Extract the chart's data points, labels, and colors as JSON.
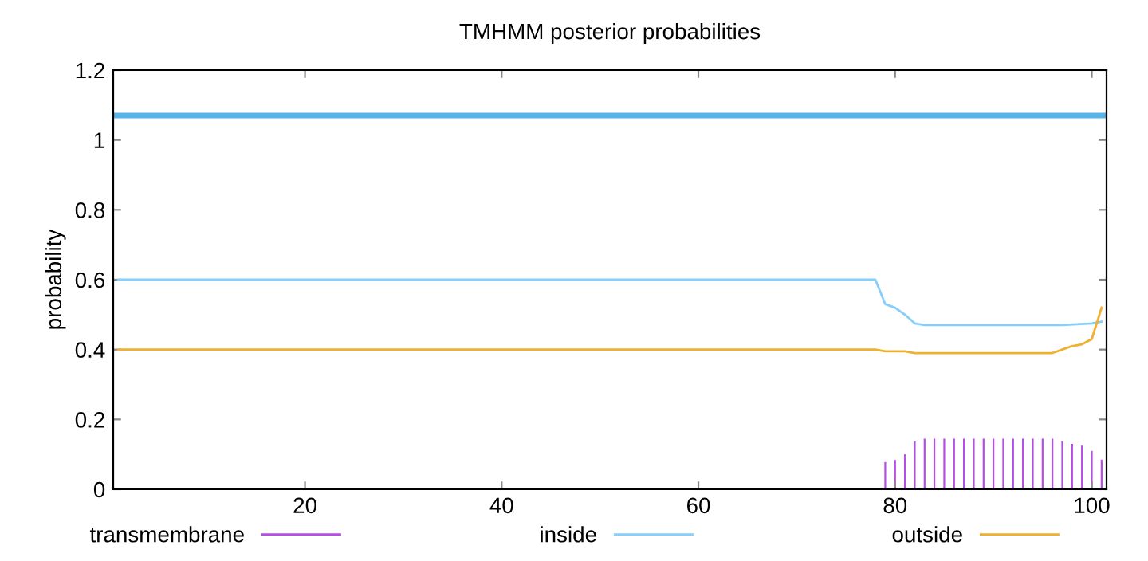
{
  "chart_data": {
    "type": "line",
    "title": "TMHMM posterior probabilities",
    "ylabel": "probability",
    "xlim": [
      0.5,
      101.5
    ],
    "xticks": [
      20,
      40,
      60,
      80,
      100
    ],
    "ylim": [
      0,
      1.2
    ],
    "yticks": [
      0,
      0.2,
      0.4,
      0.6,
      0.8,
      1,
      1.2
    ],
    "grid": false,
    "legend": "bottom",
    "marker": "none",
    "series": [
      {
        "name": "transmembrane",
        "type": "bar",
        "color": "#b44ee6",
        "x": [
          79,
          80,
          81,
          82,
          83,
          84,
          85,
          86,
          87,
          88,
          89,
          90,
          91,
          92,
          93,
          94,
          95,
          96,
          97,
          98,
          99,
          100,
          101
        ],
        "values": [
          0.078,
          0.084,
          0.1,
          0.137,
          0.145,
          0.145,
          0.145,
          0.145,
          0.145,
          0.145,
          0.145,
          0.145,
          0.145,
          0.145,
          0.145,
          0.145,
          0.145,
          0.145,
          0.137,
          0.13,
          0.125,
          0.11,
          0.085
        ]
      },
      {
        "name": "inside",
        "color": "#87cefa",
        "x": [
          1,
          78,
          79,
          80,
          81,
          82,
          83,
          97,
          100,
          101
        ],
        "values": [
          0.6,
          0.6,
          0.53,
          0.52,
          0.5,
          0.475,
          0.47,
          0.47,
          0.475,
          0.48
        ]
      },
      {
        "name": "outside",
        "color": "#f0b030",
        "x": [
          1,
          78,
          79,
          80,
          81,
          82,
          96,
          97,
          98,
          99,
          100,
          101
        ],
        "values": [
          0.4,
          0.4,
          0.395,
          0.395,
          0.395,
          0.39,
          0.39,
          0.4,
          0.41,
          0.415,
          0.43,
          0.52
        ]
      },
      {
        "color": "#56b4e9",
        "x": [
          0.5,
          101.5
        ],
        "values": [
          1.07,
          1.07
        ]
      }
    ]
  }
}
